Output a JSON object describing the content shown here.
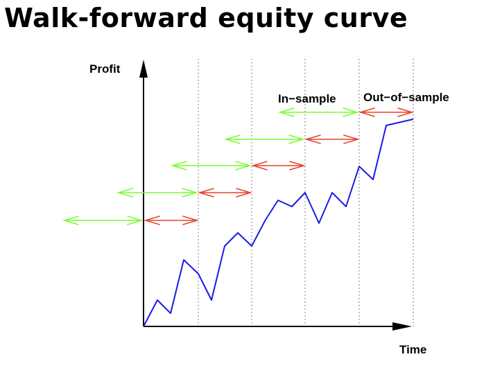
{
  "title": "Walk-forward equity curve",
  "y_axis_label": "Profit",
  "x_axis_label": "Time",
  "legend": {
    "in_sample": "In−sample",
    "out_of_sample": "Out−of−sample"
  },
  "colors": {
    "in_sample": "#7CFC32",
    "out_of_sample": "#E8412A",
    "equity_curve": "#1a1ae6",
    "axes": "#000000",
    "divider": "#555555"
  }
}
